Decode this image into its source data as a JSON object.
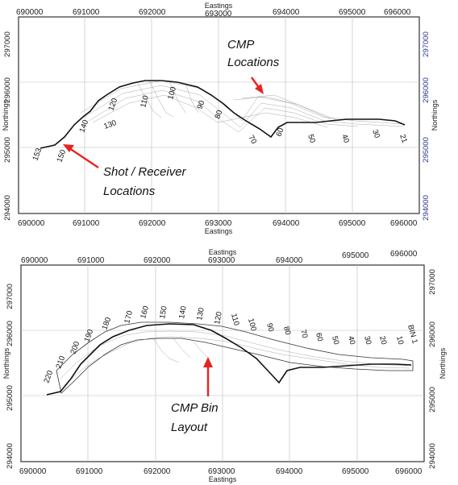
{
  "top_map": {
    "eastings_label": "Eastings",
    "northings_label": "Northings",
    "eastings_ticks_top": [
      "690000",
      "691000",
      "692000",
      "693000",
      "694000",
      "695000",
      "696000"
    ],
    "eastings_ticks_bottom": [
      "690000",
      "691000",
      "692000",
      "693000",
      "694000",
      "695000",
      "696000"
    ],
    "northings_ticks_left": [
      "297000",
      "296000",
      "295000",
      "294000"
    ],
    "northings_ticks_right": [
      "297000",
      "296000",
      "295000",
      "294000"
    ],
    "station_labels": [
      "153",
      "150",
      "140",
      "130",
      "120",
      "110",
      "100",
      "90",
      "80",
      "70",
      "60",
      "50",
      "40",
      "30",
      "21"
    ],
    "annotation_cmp": [
      "CMP",
      "Locations"
    ],
    "annotation_shot": [
      "Shot / Receiver",
      "Locations"
    ]
  },
  "bottom_map": {
    "eastings_label": "Eastings",
    "northings_label": "Northings",
    "eastings_ticks_top": [
      "690000",
      "691000",
      "692000",
      "693000",
      "694000",
      "695000",
      "696000"
    ],
    "eastings_ticks_bottom": [
      "690000",
      "691000",
      "692000",
      "693000",
      "694000",
      "695000",
      "696000"
    ],
    "northings_ticks_left": [
      "297000",
      "296000",
      "295000",
      "294000"
    ],
    "northings_ticks_right": [
      "297000",
      "296000",
      "295000",
      "294000"
    ],
    "bin_labels": [
      "220",
      "210",
      "200",
      "190",
      "180",
      "170",
      "160",
      "150",
      "140",
      "130",
      "120",
      "110",
      "100",
      "90",
      "80",
      "70",
      "60",
      "50",
      "40",
      "30",
      "20",
      "10",
      "BIN 1"
    ],
    "annotation_bin": [
      "CMP Bin",
      "Layout"
    ]
  },
  "colors": {
    "arrow": "#e8231f",
    "right_tick_blue": "#2d3a8c"
  }
}
